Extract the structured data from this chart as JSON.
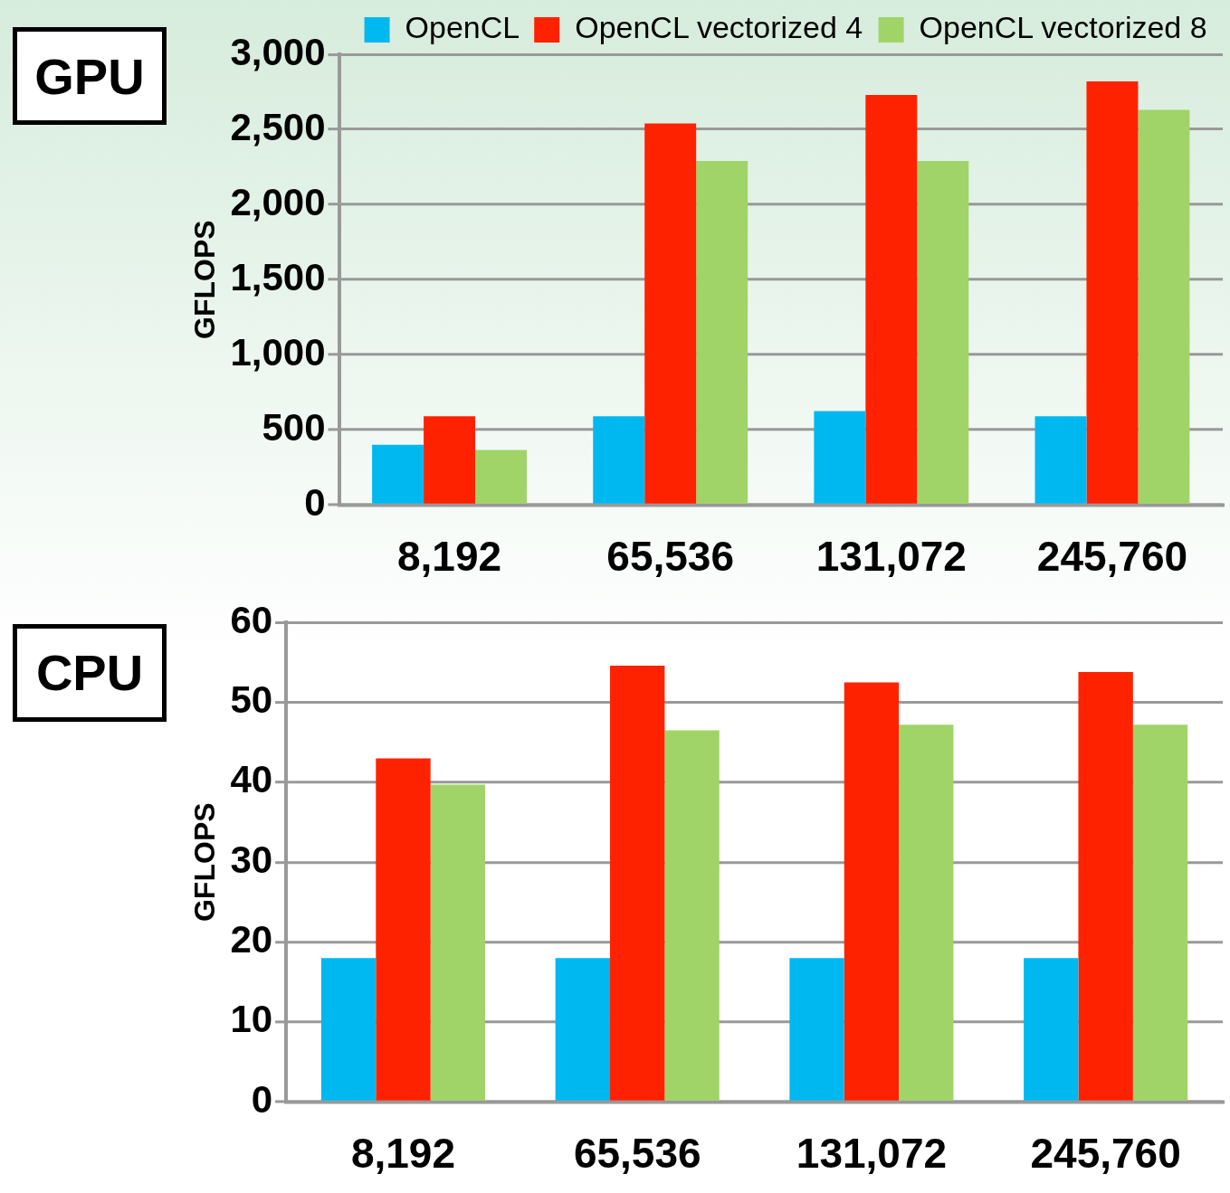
{
  "chart_data": [
    {
      "type": "bar",
      "title": "GPU",
      "ylabel": "GFLOPS",
      "categories": [
        "8,192",
        "65,536",
        "131,072",
        "245,760"
      ],
      "series": [
        {
          "name": "OpenCL",
          "color": "#00b8f0",
          "values": [
            400,
            590,
            625,
            590
          ]
        },
        {
          "name": "OpenCL vectorized 4",
          "color": "#ff2200",
          "values": [
            590,
            2540,
            2730,
            2820
          ]
        },
        {
          "name": "OpenCL vectorized 8",
          "color": "#a0d468",
          "values": [
            365,
            2290,
            2290,
            2630
          ]
        }
      ],
      "ylim": [
        0,
        3000
      ],
      "yticks": [
        0,
        500,
        {
          "value": 1000,
          "label": "1,000"
        },
        {
          "value": 1500,
          "label": "1,500"
        },
        {
          "value": 2000,
          "label": "2,000"
        },
        {
          "value": 2500,
          "label": "2,500"
        },
        {
          "value": 3000,
          "label": "3,000"
        }
      ],
      "grid": "y",
      "legend": "top"
    },
    {
      "type": "bar",
      "title": "CPU",
      "ylabel": "GFLOPS",
      "categories": [
        "8,192",
        "65,536",
        "131,072",
        "245,760"
      ],
      "series": [
        {
          "color": "#00b8f0",
          "values": [
            18,
            18,
            18,
            18
          ]
        },
        {
          "color": "#ff2200",
          "values": [
            43,
            54.6,
            52.5,
            53.8
          ]
        },
        {
          "color": "#a0d468",
          "values": [
            39.7,
            46.5,
            47.2,
            47.2
          ]
        }
      ],
      "ylim": [
        0,
        60
      ],
      "yticks": [
        0,
        10,
        20,
        30,
        40,
        50,
        60
      ],
      "grid": "y"
    }
  ]
}
